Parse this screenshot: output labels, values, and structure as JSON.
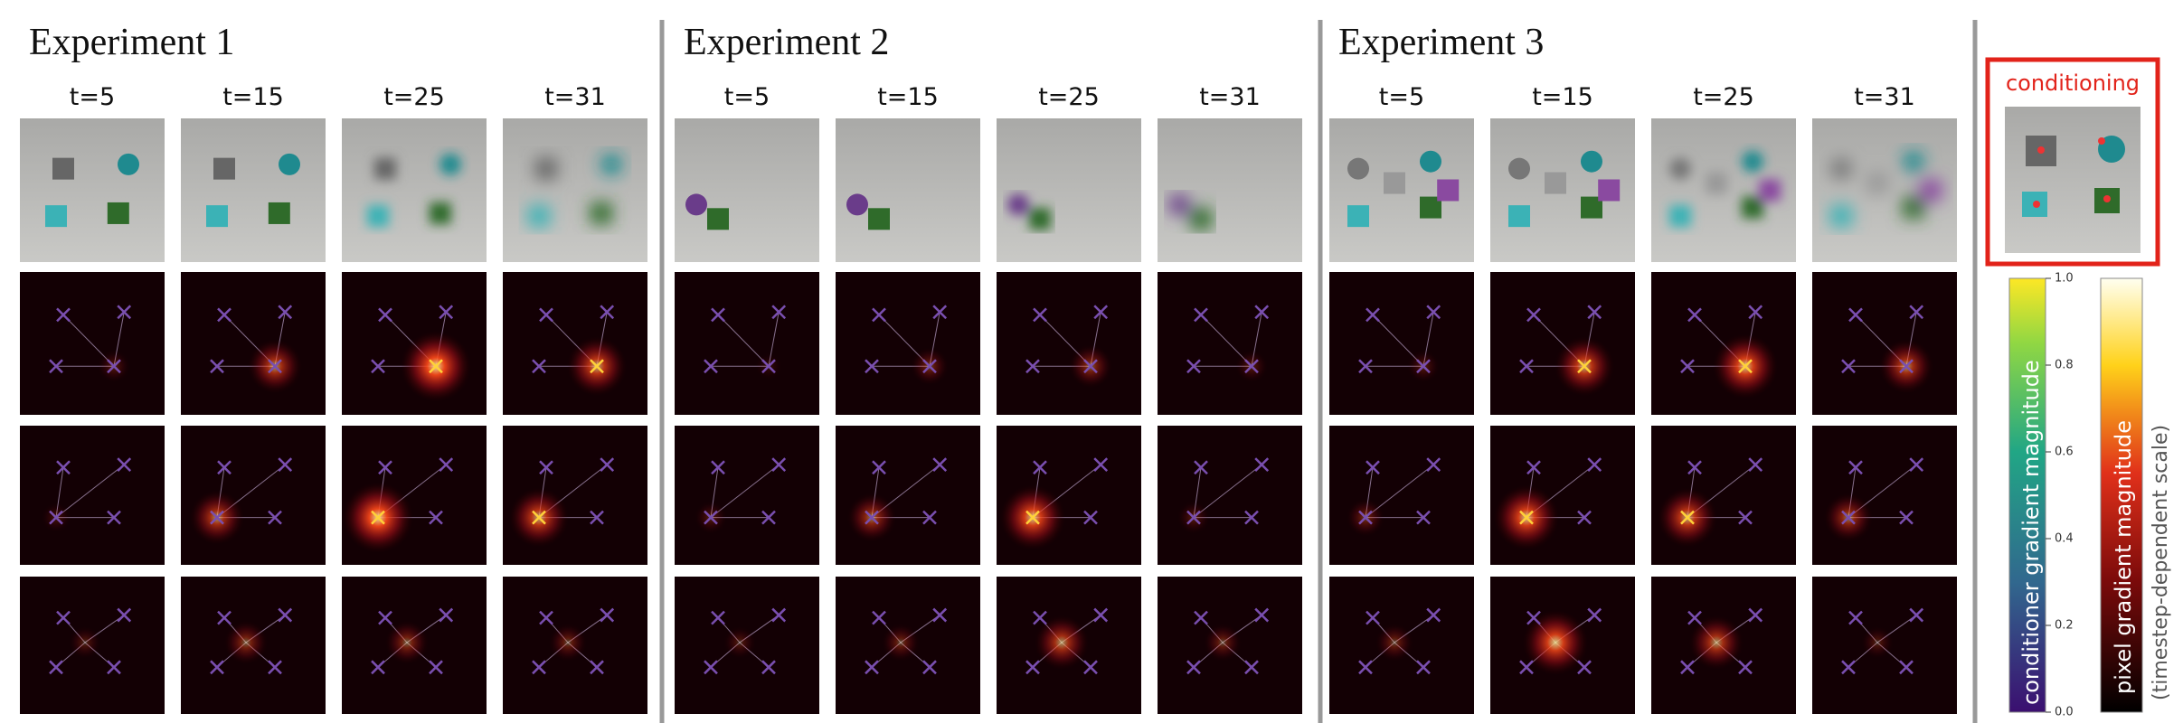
{
  "experiments": [
    {
      "title": "Experiment 1",
      "timesteps": [
        "t=5",
        "t=15",
        "t=25",
        "t=31"
      ]
    },
    {
      "title": "Experiment 2",
      "timesteps": [
        "t=5",
        "t=15",
        "t=25",
        "t=31"
      ]
    },
    {
      "title": "Experiment 3",
      "timesteps": [
        "t=5",
        "t=15",
        "t=25",
        "t=31"
      ]
    }
  ],
  "conditioning": {
    "label": "conditioning"
  },
  "colorbars": [
    {
      "label": "conditioner gradient magnitude"
    },
    {
      "label": "pixel gradient magnitude",
      "sublabel": "(timestep-dependent scale)"
    }
  ],
  "colorbar_ticks": [
    {
      "value": 0,
      "label": "0.0"
    },
    {
      "value": 0.2,
      "label": "0.2"
    },
    {
      "value": 0.4,
      "label": "0.4"
    },
    {
      "value": 0.6,
      "label": "0.6"
    },
    {
      "value": 0.8,
      "label": "0.8"
    },
    {
      "value": 1,
      "label": "1.0"
    }
  ]
}
